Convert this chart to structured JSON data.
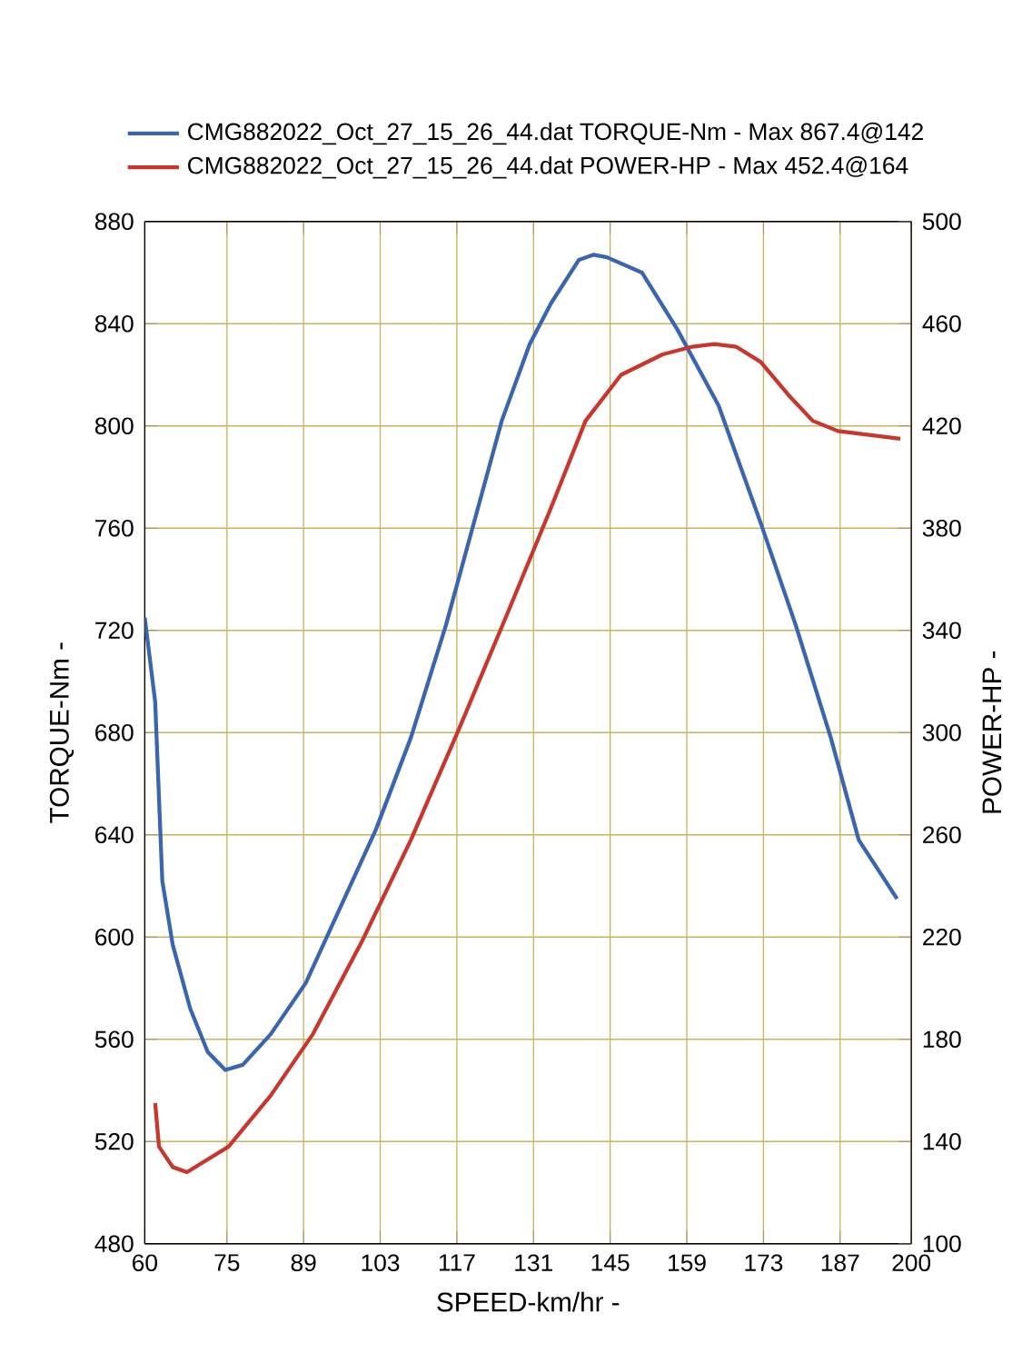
{
  "chart_data": {
    "type": "line",
    "xlabel": "SPEED-km/hr -",
    "ylabel": "TORQUE-Nm -",
    "y2label": "POWER-HP -",
    "xlim": [
      60,
      200
    ],
    "xticks": [
      60,
      75,
      89,
      103,
      117,
      131,
      145,
      159,
      173,
      187,
      200
    ],
    "ylim": [
      480,
      880
    ],
    "yticks": [
      480,
      520,
      560,
      600,
      640,
      680,
      720,
      760,
      800,
      840,
      880
    ],
    "y2lim": [
      100,
      500
    ],
    "y2ticks": [
      100,
      140,
      180,
      220,
      260,
      300,
      340,
      380,
      420,
      460,
      500
    ],
    "grid": true,
    "legend": "top",
    "marker": "none",
    "line_style": "solid",
    "series": [
      {
        "name": "CMG882022_Oct_27_15_26_44.dat TORQUE-Nm -  Max 867.4@142",
        "color": "#3a66b0",
        "x": [
          60,
          61.9,
          63.2,
          65.1,
          68.3,
          71.5,
          74.7,
          77.9,
          83,
          89.4,
          95.8,
          102.2,
          108.6,
          115,
          120.1,
          125.2,
          130.3,
          134.2,
          139.3,
          142,
          144.4,
          150.8,
          157.2,
          164.8,
          172.5,
          178.9,
          185.3,
          190.4,
          197.4
        ],
        "values": [
          725,
          692,
          622,
          597,
          572,
          555,
          548,
          550,
          562,
          582,
          612,
          642,
          678,
          722,
          762,
          802,
          832,
          848,
          865,
          867,
          866,
          860,
          838,
          808,
          762,
          722,
          678,
          638,
          615
        ]
      },
      {
        "name": "CMG882022_Oct_27_15_26_44.dat POWER-HP -  Max 452.4@164",
        "color": "#c8372d",
        "axis": "y2",
        "x": [
          61.9,
          62.6,
          65.1,
          67.7,
          75.3,
          83,
          90.7,
          99.6,
          108.6,
          117.5,
          126.5,
          134.2,
          140.5,
          147,
          154.6,
          160,
          164,
          168,
          172.5,
          177.6,
          182,
          186.6,
          198
        ],
        "values": [
          155,
          138,
          130,
          128,
          138,
          158,
          182,
          218,
          258,
          302,
          348,
          388,
          422,
          440,
          448,
          451,
          452,
          451,
          445,
          432,
          422,
          418,
          415
        ]
      }
    ]
  }
}
